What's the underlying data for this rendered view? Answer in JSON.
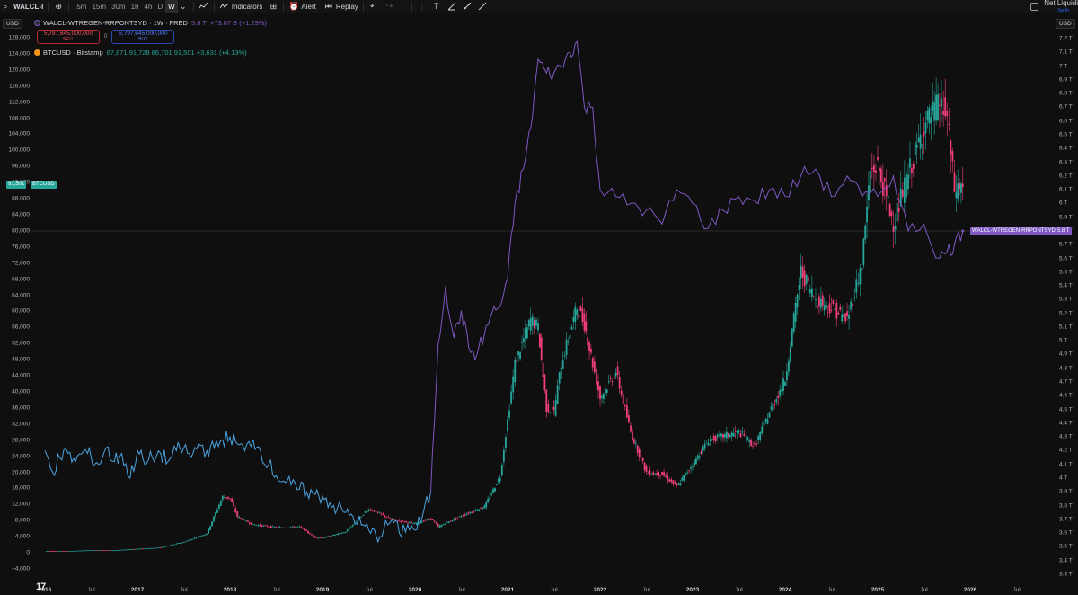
{
  "toolbar": {
    "symbol": "WALCL-I",
    "intervals": [
      "5m",
      "15m",
      "30m",
      "1h",
      "4h",
      "D",
      "W"
    ],
    "active_interval": "W",
    "indicators_label": "Indicators",
    "alert_label": "Alert",
    "replay_label": "Replay",
    "net_liquidity_label": "Net Liquidi",
    "net_liquidity_sub": "Synth"
  },
  "axes": {
    "left_unit": "USD",
    "right_unit": "USD",
    "left_ticks": [
      "128,000",
      "124,000",
      "120,000",
      "116,000",
      "112,000",
      "108,000",
      "104,000",
      "100,000",
      "96,000",
      "92,000",
      "88,000",
      "84,000",
      "80,000",
      "76,000",
      "72,000",
      "68,000",
      "64,000",
      "60,000",
      "56,000",
      "52,000",
      "48,000",
      "44,000",
      "40,000",
      "36,000",
      "32,000",
      "28,000",
      "24,000",
      "20,000",
      "16,000",
      "12,000",
      "8,000",
      "4,000",
      "0",
      "−4,000"
    ],
    "right_ticks": [
      "7.2 T",
      "7.1 T",
      "7 T",
      "6.9 T",
      "6.8 T",
      "6.7 T",
      "6.6 T",
      "6.5 T",
      "6.4 T",
      "6.3 T",
      "6.2 T",
      "6.1 T",
      "6 T",
      "5.9 T",
      "5.8 T",
      "5.7 T",
      "5.6 T",
      "5.5 T",
      "5.4 T",
      "5.3 T",
      "5.2 T",
      "5.1 T",
      "5 T",
      "4.9 T",
      "4.8 T",
      "4.7 T",
      "4.6 T",
      "4.5 T",
      "4.4 T",
      "4.3 T",
      "4.2 T",
      "4.1 T",
      "4 T",
      "3.9 T",
      "3.8 T",
      "3.7 T",
      "3.6 T",
      "3.5 T",
      "3.4 T",
      "3.3 T"
    ],
    "x_ticks": [
      {
        "label": "2016",
        "year": true
      },
      {
        "label": "Jul",
        "year": false
      },
      {
        "label": "2017",
        "year": true
      },
      {
        "label": "Jul",
        "year": false
      },
      {
        "label": "2018",
        "year": true
      },
      {
        "label": "Jul",
        "year": false
      },
      {
        "label": "2019",
        "year": true
      },
      {
        "label": "Jul",
        "year": false
      },
      {
        "label": "2020",
        "year": true
      },
      {
        "label": "Jul",
        "year": false
      },
      {
        "label": "2021",
        "year": true
      },
      {
        "label": "Jul",
        "year": false
      },
      {
        "label": "2022",
        "year": true
      },
      {
        "label": "Jul",
        "year": false
      },
      {
        "label": "2023",
        "year": true
      },
      {
        "label": "Jul",
        "year": false
      },
      {
        "label": "2024",
        "year": true
      },
      {
        "label": "Jul",
        "year": false
      },
      {
        "label": "2025",
        "year": true
      },
      {
        "label": "Jul",
        "year": false
      },
      {
        "label": "2026",
        "year": true
      },
      {
        "label": "Jul",
        "year": false
      }
    ]
  },
  "legend": {
    "main_title": "WALCL-WTREGEN-RRPONTSYD · 1W · FRED",
    "main_value": "5.8 T",
    "main_change": "+73.87 B (+1.29%)",
    "sell_value": "5,797,645,000,000",
    "sell_label": "SELL",
    "spread": "0",
    "buy_value": "5,797,645,000,000",
    "buy_label": "BUY",
    "btc_title": "BTCUSD · Bitstamp",
    "btc_values": "87,871  91,728  86,701  91,501  +3,631 (+4.13%)"
  },
  "tags": {
    "btc_price": "91,501",
    "btc_symbol": "BTCUSD",
    "liq_symbol": "WALCL-WTREGEN-RRPONTSYD",
    "liq_value": "5.8 T"
  },
  "colors": {
    "background": "#0f0f0f",
    "btc_up": "#26a69a",
    "btc_down": "#f23f79",
    "net_liquidity_pre2020": "#4aa3df",
    "net_liquidity_post2020": "#7e57c2",
    "sell": "#f23645",
    "buy": "#2962ff",
    "btc_icon": "#f7931a"
  },
  "chart_data": {
    "type": "line",
    "title": "WALCL-WTREGEN-RRPONTSYD · 1W · FRED",
    "x_range": [
      "2016-01",
      "2026-07"
    ],
    "left_axis": {
      "label": "USD",
      "range": [
        -4000,
        128000
      ]
    },
    "right_axis": {
      "label": "USD",
      "range": [
        3.3,
        7.2
      ],
      "unit": "T"
    },
    "series": [
      {
        "name": "WALCL-WTREGEN-RRPONTSYD",
        "axis": "right",
        "x": [
          2016.0,
          2016.08,
          2016.16,
          2016.25,
          2016.33,
          2016.42,
          2016.5,
          2016.58,
          2016.66,
          2016.75,
          2016.83,
          2016.92,
          2017.0,
          2017.08,
          2017.16,
          2017.25,
          2017.33,
          2017.42,
          2017.5,
          2017.58,
          2017.66,
          2017.75,
          2017.83,
          2017.92,
          2018.0,
          2018.08,
          2018.16,
          2018.25,
          2018.33,
          2018.42,
          2018.5,
          2018.58,
          2018.66,
          2018.75,
          2018.83,
          2018.92,
          2019.0,
          2019.08,
          2019.16,
          2019.25,
          2019.33,
          2019.42,
          2019.5,
          2019.58,
          2019.66,
          2019.75,
          2019.83,
          2019.92,
          2020.0,
          2020.08,
          2020.17,
          2020.25,
          2020.33,
          2020.42,
          2020.5,
          2020.58,
          2020.67,
          2020.75,
          2020.83,
          2020.92,
          2021.0,
          2021.08,
          2021.17,
          2021.25,
          2021.33,
          2021.42,
          2021.5,
          2021.58,
          2021.67,
          2021.75,
          2021.83,
          2021.92,
          2022.0,
          2022.17,
          2022.33,
          2022.5,
          2022.67,
          2022.83,
          2023.0,
          2023.17,
          2023.33,
          2023.5,
          2023.67,
          2023.83,
          2024.0,
          2024.17,
          2024.33,
          2024.5,
          2024.67,
          2024.83,
          2025.0,
          2025.17,
          2025.33,
          2025.5,
          2025.67,
          2025.75,
          2025.83,
          2025.92
        ],
        "y": [
          4.2,
          4.05,
          4.15,
          4.18,
          4.12,
          4.2,
          4.15,
          4.1,
          4.22,
          4.12,
          4.18,
          4.0,
          4.2,
          4.1,
          4.15,
          4.18,
          4.12,
          4.2,
          4.22,
          4.15,
          4.25,
          4.2,
          4.22,
          4.28,
          4.3,
          4.25,
          4.2,
          4.28,
          4.2,
          4.1,
          4.02,
          3.98,
          3.95,
          3.92,
          3.9,
          3.88,
          3.87,
          3.82,
          3.78,
          3.75,
          3.72,
          3.66,
          3.62,
          3.58,
          3.62,
          3.7,
          3.6,
          3.66,
          3.62,
          3.72,
          3.9,
          4.98,
          5.4,
          5.02,
          5.22,
          4.95,
          4.9,
          5.05,
          5.2,
          5.25,
          5.45,
          6.0,
          6.25,
          6.55,
          7.05,
          6.95,
          6.95,
          7.0,
          7.1,
          7.18,
          6.7,
          6.7,
          6.1,
          6.05,
          6.0,
          5.95,
          5.85,
          6.1,
          6.0,
          5.82,
          5.95,
          6.05,
          6.02,
          6.1,
          6.05,
          6.2,
          6.25,
          6.05,
          6.2,
          6.05,
          6.05,
          6.2,
          5.8,
          5.85,
          5.6,
          5.65,
          5.7,
          5.8
        ]
      },
      {
        "name": "BTCUSD · Bitstamp",
        "axis": "left",
        "type": "candlestick",
        "x": [
          2016.0,
          2016.25,
          2016.5,
          2016.75,
          2017.0,
          2017.25,
          2017.5,
          2017.75,
          2017.92,
          2018.0,
          2018.08,
          2018.25,
          2018.5,
          2018.75,
          2018.92,
          2019.0,
          2019.25,
          2019.5,
          2019.75,
          2020.0,
          2020.17,
          2020.25,
          2020.5,
          2020.75,
          2020.92,
          2021.0,
          2021.08,
          2021.25,
          2021.33,
          2021.42,
          2021.5,
          2021.58,
          2021.75,
          2021.83,
          2021.92,
          2022.0,
          2022.17,
          2022.33,
          2022.5,
          2022.67,
          2022.83,
          2023.0,
          2023.17,
          2023.33,
          2023.5,
          2023.67,
          2023.83,
          2024.0,
          2024.17,
          2024.33,
          2024.5,
          2024.67,
          2024.83,
          2024.92,
          2025.0,
          2025.17,
          2025.33,
          2025.5,
          2025.67,
          2025.75,
          2025.83,
          2025.92
        ],
        "y": [
          430,
          420,
          660,
          620,
          980,
          1300,
          2700,
          4800,
          14000,
          13500,
          9000,
          7000,
          6300,
          6500,
          3800,
          3700,
          5200,
          11000,
          8300,
          7200,
          8600,
          6500,
          9200,
          11500,
          19000,
          33000,
          47000,
          58000,
          56000,
          36000,
          35000,
          47000,
          61000,
          57000,
          47000,
          38500,
          45000,
          30000,
          20000,
          19500,
          16500,
          22000,
          28000,
          29000,
          30000,
          26500,
          35000,
          43000,
          70000,
          63000,
          61000,
          58000,
          72000,
          95000,
          96000,
          82000,
          94000,
          106000,
          112000,
          108000,
          90000,
          91501
        ]
      }
    ],
    "last_values": {
      "btc": "91,501",
      "net_liquidity": "5.8 T"
    }
  }
}
